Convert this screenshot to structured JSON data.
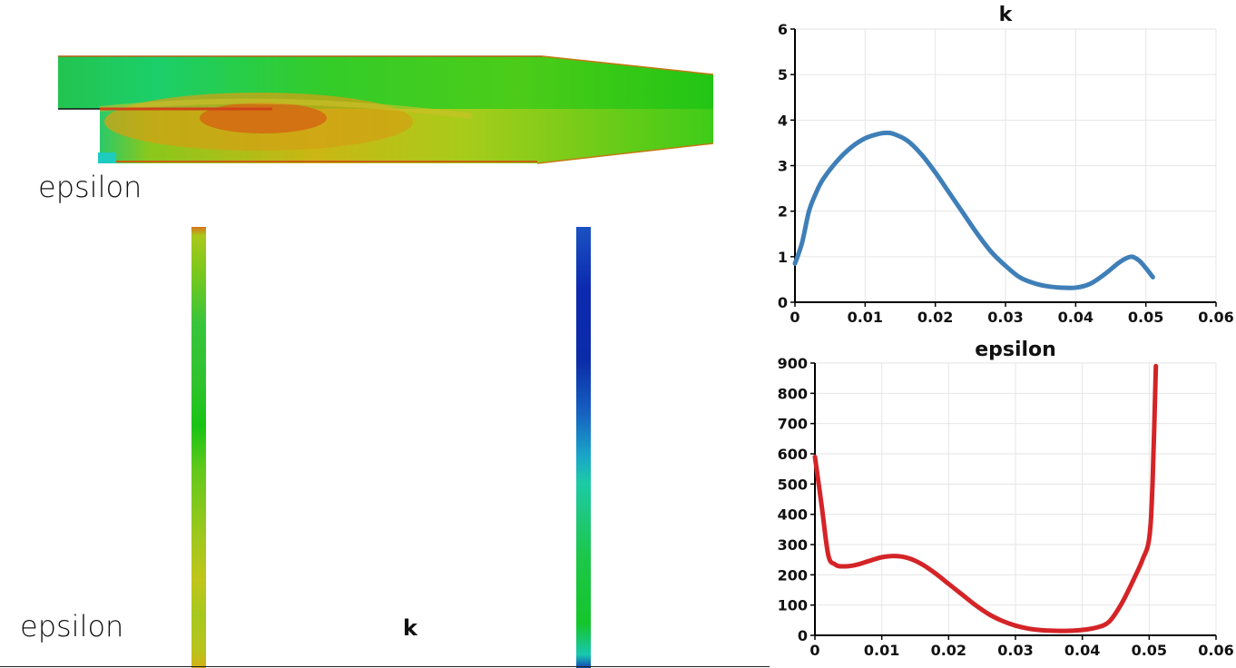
{
  "views": {
    "contour_label": "epsilon",
    "left_strip_label": "epsilon",
    "right_strip_label": "k"
  },
  "colors": {
    "k_line": "#3f7fb8",
    "epsilon_line": "#d42427",
    "grid": "#e6e6e6",
    "axis": "#000000"
  },
  "chart_data": [
    {
      "type": "line",
      "title": "k",
      "xlabel": "",
      "ylabel": "",
      "xlim": [
        0,
        0.06
      ],
      "ylim": [
        0,
        6
      ],
      "xticks": [
        "0",
        "0.01",
        "0.02",
        "0.03",
        "0.04",
        "0.05",
        "0.06"
      ],
      "yticks": [
        "0",
        "1",
        "2",
        "3",
        "4",
        "5",
        "6"
      ],
      "grid": true,
      "series": [
        {
          "color": "#3f7fb8",
          "x": [
            0,
            0.001,
            0.002,
            0.003,
            0.004,
            0.006,
            0.008,
            0.01,
            0.012,
            0.013,
            0.014,
            0.016,
            0.018,
            0.02,
            0.022,
            0.024,
            0.026,
            0.028,
            0.03,
            0.032,
            0.034,
            0.036,
            0.038,
            0.04,
            0.042,
            0.044,
            0.046,
            0.047,
            0.048,
            0.049,
            0.05,
            0.051
          ],
          "y": [
            0.85,
            1.3,
            2.0,
            2.4,
            2.7,
            3.1,
            3.4,
            3.6,
            3.7,
            3.72,
            3.7,
            3.55,
            3.25,
            2.85,
            2.4,
            1.95,
            1.5,
            1.1,
            0.8,
            0.55,
            0.42,
            0.35,
            0.32,
            0.32,
            0.4,
            0.6,
            0.85,
            0.95,
            1.0,
            0.92,
            0.75,
            0.55
          ]
        }
      ]
    },
    {
      "type": "line",
      "title": "epsilon",
      "xlabel": "",
      "ylabel": "",
      "xlim": [
        0,
        0.06
      ],
      "ylim": [
        0,
        900
      ],
      "xticks": [
        "0",
        "0.01",
        "0.02",
        "0.03",
        "0.04",
        "0.05",
        "0.06"
      ],
      "yticks": [
        "0",
        "100",
        "200",
        "300",
        "400",
        "500",
        "600",
        "700",
        "800",
        "900"
      ],
      "grid": true,
      "series": [
        {
          "color": "#d42427",
          "x": [
            0,
            0.001,
            0.002,
            0.003,
            0.004,
            0.006,
            0.008,
            0.01,
            0.012,
            0.014,
            0.016,
            0.018,
            0.02,
            0.022,
            0.024,
            0.026,
            0.028,
            0.03,
            0.032,
            0.034,
            0.036,
            0.038,
            0.04,
            0.042,
            0.044,
            0.046,
            0.048,
            0.049,
            0.05,
            0.0505,
            0.051
          ],
          "y": [
            590,
            430,
            265,
            235,
            228,
            232,
            245,
            258,
            262,
            255,
            235,
            205,
            170,
            135,
            100,
            70,
            48,
            32,
            22,
            17,
            15,
            15,
            18,
            25,
            45,
            110,
            200,
            250,
            320,
            500,
            890
          ]
        }
      ]
    }
  ]
}
